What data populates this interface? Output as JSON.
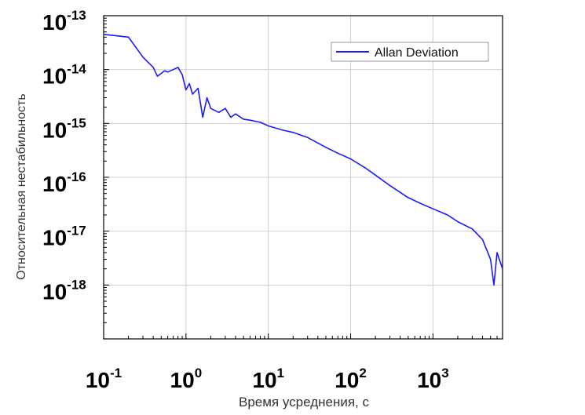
{
  "chart_data": {
    "type": "line",
    "title": "",
    "xlabel": "Время усреднения, с",
    "ylabel": "Относительная нестабильность",
    "x_scale": "log",
    "y_scale": "log",
    "xlim": [
      0.1,
      7000
    ],
    "ylim": [
      1e-19,
      1e-13
    ],
    "grid": true,
    "legend": "top-right",
    "x_ticks": [
      {
        "base": "10",
        "exp": "-1",
        "value": 0.1
      },
      {
        "base": "10",
        "exp": "0",
        "value": 1
      },
      {
        "base": "10",
        "exp": "1",
        "value": 10
      },
      {
        "base": "10",
        "exp": "2",
        "value": 100
      },
      {
        "base": "10",
        "exp": "3",
        "value": 1000
      }
    ],
    "y_ticks": [
      {
        "base": "10",
        "exp": "-13",
        "value": 1e-13
      },
      {
        "base": "10",
        "exp": "-14",
        "value": 1e-14
      },
      {
        "base": "10",
        "exp": "-15",
        "value": 1e-15
      },
      {
        "base": "10",
        "exp": "-16",
        "value": 1e-16
      },
      {
        "base": "10",
        "exp": "-17",
        "value": 1e-17
      },
      {
        "base": "10",
        "exp": "-18",
        "value": 1e-18
      }
    ],
    "series": [
      {
        "name": "Allan Deviation",
        "color": "#1a1aff",
        "x": [
          0.1,
          0.2,
          0.3,
          0.4,
          0.45,
          0.5,
          0.55,
          0.6,
          0.7,
          0.8,
          0.9,
          1.0,
          1.1,
          1.2,
          1.4,
          1.6,
          1.8,
          2.0,
          2.5,
          3.0,
          3.5,
          4.0,
          5.0,
          6.0,
          8.0,
          10,
          15,
          20,
          30,
          50,
          70,
          100,
          150,
          200,
          300,
          500,
          700,
          1000,
          1500,
          2000,
          3000,
          4000,
          5000,
          5500,
          6000,
          7000
        ],
        "y": [
          4.5e-14,
          4e-14,
          1.7e-14,
          1.1e-14,
          7.5e-15,
          8.5e-15,
          9.5e-15,
          9e-15,
          1e-14,
          1.1e-14,
          8e-15,
          4.2e-15,
          5.5e-15,
          3.5e-15,
          4.5e-15,
          1.3e-15,
          3e-15,
          1.9e-15,
          1.6e-15,
          1.9e-15,
          1.3e-15,
          1.5e-15,
          1.2e-15,
          1.15e-15,
          1.05e-15,
          9e-16,
          7.5e-16,
          6.8e-16,
          5.5e-16,
          3.6e-16,
          2.8e-16,
          2.2e-16,
          1.5e-16,
          1.1e-16,
          7e-17,
          4.2e-17,
          3.3e-17,
          2.6e-17,
          2e-17,
          1.5e-17,
          1.1e-17,
          7e-18,
          3e-18,
          1e-18,
          4e-18,
          2e-18
        ]
      }
    ]
  }
}
